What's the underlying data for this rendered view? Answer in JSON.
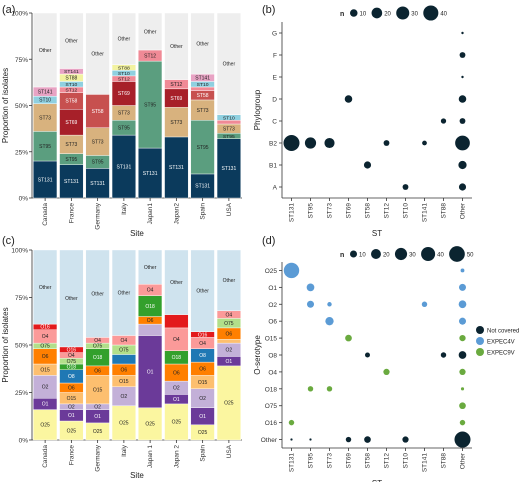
{
  "figure": {
    "panel_labels": [
      "(a)",
      "(b)",
      "(c)",
      "(d)"
    ]
  },
  "chart_data": [
    {
      "panel": "(a)",
      "type": "bar",
      "stacked": true,
      "xlabel": "Site",
      "ylabel": "Proportion of isolates",
      "ylim": [
        0,
        1
      ],
      "yticks": [
        "0%",
        "25%",
        "50%",
        "75%",
        "100%"
      ],
      "categories": [
        "Canada",
        "France",
        "Germany",
        "Italy",
        "Japan1",
        "Japan2",
        "Spain",
        "USA"
      ],
      "segment_labels_shown": [
        [
          "ST131",
          "ST95",
          "ST73",
          "ST10",
          "ST141",
          "Other"
        ],
        [
          "ST131",
          "ST95",
          "ST73",
          "ST69",
          "ST58",
          "ST12",
          "ST10",
          "ST88",
          "ST141",
          "Other"
        ],
        [
          "ST131",
          "ST95",
          "ST73",
          "ST58",
          "Other"
        ],
        [
          "ST131",
          "ST95",
          "ST73",
          "ST69",
          "ST12",
          "ST10",
          "ST88",
          "Other"
        ],
        [
          "ST131",
          "ST95",
          "ST12",
          "Other"
        ],
        [
          "ST131",
          "ST73",
          "ST69",
          "ST12",
          "Other"
        ],
        [
          "ST131",
          "ST95",
          "ST73",
          "ST58",
          "ST12",
          "ST10",
          "ST141",
          "Other"
        ],
        [
          "ST131",
          "ST95",
          "ST73",
          "ST12",
          "ST10",
          "Other"
        ]
      ],
      "series": [
        {
          "name": "ST131",
          "color": "#0b3a5c",
          "values": [
            0.2,
            0.18,
            0.16,
            0.34,
            0.27,
            0.33,
            0.13,
            0.32
          ]
        },
        {
          "name": "ST95",
          "color": "#5b9e7f",
          "values": [
            0.16,
            0.06,
            0.07,
            0.08,
            0.47,
            0.0,
            0.29,
            0.03
          ]
        },
        {
          "name": "ST73",
          "color": "#d8b27e",
          "values": [
            0.15,
            0.1,
            0.15,
            0.08,
            0.0,
            0.16,
            0.11,
            0.05
          ]
        },
        {
          "name": "ST69",
          "color": "#a72029",
          "values": [
            0.0,
            0.14,
            0.0,
            0.13,
            0.0,
            0.1,
            0.0,
            0.0
          ]
        },
        {
          "name": "ST58",
          "color": "#c7504f",
          "values": [
            0.0,
            0.09,
            0.18,
            0.0,
            0.0,
            0.0,
            0.05,
            0.0
          ]
        },
        {
          "name": "ST12",
          "color": "#f08a96",
          "values": [
            0.0,
            0.03,
            0.0,
            0.03,
            0.06,
            0.05,
            0.02,
            0.02
          ]
        },
        {
          "name": "ST10",
          "color": "#8fd0e0",
          "values": [
            0.04,
            0.03,
            0.0,
            0.03,
            0.0,
            0.0,
            0.03,
            0.03
          ]
        },
        {
          "name": "ST88",
          "color": "#f2f2a0",
          "values": [
            0.0,
            0.04,
            0.0,
            0.03,
            0.0,
            0.0,
            0.0,
            0.0
          ]
        },
        {
          "name": "ST141",
          "color": "#e8a3c4",
          "values": [
            0.05,
            0.03,
            0.0,
            0.0,
            0.0,
            0.0,
            0.04,
            0.0
          ]
        },
        {
          "name": "Other",
          "color": "#eeeeee",
          "values": [
            0.4,
            0.3,
            0.44,
            0.28,
            0.2,
            0.36,
            0.33,
            0.55
          ]
        }
      ]
    },
    {
      "panel": "(b)",
      "type": "scatter",
      "subtype": "bubble",
      "xlabel": "ST",
      "ylabel": "Phylogroup",
      "x_categories": [
        "ST131",
        "ST95",
        "ST73",
        "ST69",
        "ST58",
        "ST12",
        "ST10",
        "ST141",
        "ST88",
        "Other"
      ],
      "y_categories": [
        "G",
        "F",
        "E",
        "D",
        "C",
        "B2",
        "B1",
        "A"
      ],
      "size_legend": {
        "title": "n",
        "values": [
          10,
          20,
          30,
          40
        ]
      },
      "color": "#0b2430",
      "points": [
        {
          "x": "ST131",
          "y": "B2",
          "n": 45
        },
        {
          "x": "ST95",
          "y": "B2",
          "n": 22
        },
        {
          "x": "ST73",
          "y": "B2",
          "n": 18
        },
        {
          "x": "ST69",
          "y": "D",
          "n": 10
        },
        {
          "x": "ST58",
          "y": "B1",
          "n": 9
        },
        {
          "x": "ST12",
          "y": "B2",
          "n": 6
        },
        {
          "x": "ST10",
          "y": "A",
          "n": 6
        },
        {
          "x": "ST141",
          "y": "B2",
          "n": 4
        },
        {
          "x": "ST88",
          "y": "C",
          "n": 5
        },
        {
          "x": "Other",
          "y": "G",
          "n": 1
        },
        {
          "x": "Other",
          "y": "F",
          "n": 6
        },
        {
          "x": "Other",
          "y": "E",
          "n": 1
        },
        {
          "x": "Other",
          "y": "D",
          "n": 10
        },
        {
          "x": "Other",
          "y": "C",
          "n": 6
        },
        {
          "x": "Other",
          "y": "B2",
          "n": 38
        },
        {
          "x": "Other",
          "y": "B1",
          "n": 12
        },
        {
          "x": "Other",
          "y": "A",
          "n": 9
        }
      ]
    },
    {
      "panel": "(c)",
      "type": "bar",
      "stacked": true,
      "xlabel": "Site",
      "ylabel": "Proportion of isolates",
      "ylim": [
        0,
        1
      ],
      "yticks": [
        "0%",
        "25%",
        "50%",
        "75%",
        "100%"
      ],
      "categories": [
        "Canada",
        "France",
        "Germany",
        "Italy",
        "Japan 1",
        "Japan 2",
        "Spain",
        "USA"
      ],
      "segment_labels_shown": [
        [
          "O25",
          "O1",
          "O2",
          "O6",
          "O15",
          "O4",
          "O75",
          "O16",
          "Other"
        ],
        [
          "O25",
          "O1",
          "O2",
          "O6",
          "O8",
          "O15",
          "O4",
          "O75",
          "O16",
          "O18",
          "Other"
        ],
        [
          "O25",
          "O1",
          "O2",
          "O15",
          "O6",
          "O18",
          "O75",
          "O4",
          "Other"
        ],
        [
          "O25",
          "O1",
          "O2",
          "O6",
          "O15",
          "O4",
          "O75",
          "Other"
        ],
        [
          "O25",
          "O1",
          "O6",
          "O4",
          "O18",
          "Other"
        ],
        [
          "O25",
          "O1",
          "O2",
          "O6",
          "O4",
          "O18",
          "Other"
        ],
        [
          "O25",
          "O1",
          "O2",
          "O15",
          "O6",
          "O8",
          "O4",
          "O16",
          "Other"
        ],
        [
          "O25",
          "O1",
          "O2",
          "O6",
          "O15",
          "O75",
          "O4",
          "Other"
        ]
      ],
      "series": [
        {
          "name": "O25",
          "color": "#fbf6a0",
          "values": [
            0.16,
            0.1,
            0.09,
            0.18,
            0.17,
            0.19,
            0.08,
            0.39
          ]
        },
        {
          "name": "O1",
          "color": "#6b3a99",
          "values": [
            0.06,
            0.06,
            0.07,
            0.0,
            0.38,
            0.05,
            0.09,
            0.05
          ]
        },
        {
          "name": "O2",
          "color": "#c3b0d8",
          "values": [
            0.12,
            0.03,
            0.03,
            0.1,
            0.06,
            0.07,
            0.1,
            0.07
          ]
        },
        {
          "name": "O15",
          "color": "#fdbf6f",
          "values": [
            0.06,
            0.06,
            0.15,
            0.06,
            0.0,
            0.0,
            0.07,
            0.02
          ]
        },
        {
          "name": "O6",
          "color": "#ff7f00",
          "values": [
            0.08,
            0.05,
            0.05,
            0.06,
            0.04,
            0.09,
            0.07,
            0.06
          ]
        },
        {
          "name": "O8",
          "color": "#1f78b4",
          "values": [
            0.0,
            0.07,
            0.0,
            0.05,
            0.0,
            0.0,
            0.07,
            0.0
          ]
        },
        {
          "name": "O18",
          "color": "#33a02c",
          "values": [
            0.0,
            0.03,
            0.09,
            0.0,
            0.11,
            0.07,
            0.0,
            0.0
          ]
        },
        {
          "name": "O75",
          "color": "#b2df8a",
          "values": [
            0.03,
            0.03,
            0.03,
            0.05,
            0.0,
            0.0,
            0.0,
            0.05
          ]
        },
        {
          "name": "O4",
          "color": "#fb9a99",
          "values": [
            0.07,
            0.03,
            0.03,
            0.05,
            0.06,
            0.12,
            0.06,
            0.04
          ]
        },
        {
          "name": "O16",
          "color": "#e31a1c",
          "values": [
            0.03,
            0.03,
            0.0,
            0.0,
            0.0,
            0.07,
            0.03,
            0.0
          ]
        },
        {
          "name": "Other",
          "color": "#cfe3ee",
          "values": [
            0.39,
            0.51,
            0.46,
            0.45,
            0.18,
            0.34,
            0.43,
            0.32
          ]
        }
      ]
    },
    {
      "panel": "(d)",
      "type": "scatter",
      "subtype": "bubble",
      "xlabel": "ST",
      "ylabel": "O-serotype",
      "x_categories": [
        "ST131",
        "ST95",
        "ST73",
        "ST69",
        "ST58",
        "ST12",
        "ST10",
        "ST141",
        "ST88",
        "Other"
      ],
      "y_categories": [
        "O25",
        "O1",
        "O2",
        "O6",
        "O15",
        "O8",
        "O4",
        "O18",
        "O75",
        "O16",
        "Other"
      ],
      "size_legend": {
        "title": "n",
        "values": [
          10,
          20,
          30,
          40,
          50
        ]
      },
      "color_legend": [
        {
          "label": "Not covered",
          "color": "#0b2430"
        },
        {
          "label": "EXPEC4V",
          "color": "#5b9bd5"
        },
        {
          "label": "EXPEC9V",
          "color": "#6aaa3f"
        }
      ],
      "points": [
        {
          "x": "ST131",
          "y": "O25",
          "n": 48,
          "group": "EXPEC4V"
        },
        {
          "x": "ST131",
          "y": "O16",
          "n": 6,
          "group": "EXPEC9V"
        },
        {
          "x": "ST131",
          "y": "Other",
          "n": 1,
          "group": "Not covered"
        },
        {
          "x": "ST95",
          "y": "O1",
          "n": 12,
          "group": "EXPEC4V"
        },
        {
          "x": "ST95",
          "y": "O2",
          "n": 10,
          "group": "EXPEC4V"
        },
        {
          "x": "ST95",
          "y": "O18",
          "n": 6,
          "group": "EXPEC9V"
        },
        {
          "x": "ST95",
          "y": "Other",
          "n": 1,
          "group": "Not covered"
        },
        {
          "x": "ST73",
          "y": "O2",
          "n": 4,
          "group": "EXPEC4V"
        },
        {
          "x": "ST73",
          "y": "O6",
          "n": 14,
          "group": "EXPEC4V"
        },
        {
          "x": "ST73",
          "y": "O18",
          "n": 6,
          "group": "EXPEC9V"
        },
        {
          "x": "ST69",
          "y": "O15",
          "n": 9,
          "group": "EXPEC9V"
        },
        {
          "x": "ST69",
          "y": "Other",
          "n": 6,
          "group": "Not covered"
        },
        {
          "x": "ST58",
          "y": "O8",
          "n": 5,
          "group": "Not covered"
        },
        {
          "x": "ST58",
          "y": "Other",
          "n": 9,
          "group": "Not covered"
        },
        {
          "x": "ST12",
          "y": "O4",
          "n": 8,
          "group": "EXPEC9V"
        },
        {
          "x": "ST10",
          "y": "Other",
          "n": 8,
          "group": "Not covered"
        },
        {
          "x": "ST141",
          "y": "O2",
          "n": 6,
          "group": "EXPEC4V"
        },
        {
          "x": "ST88",
          "y": "O8",
          "n": 6,
          "group": "Not covered"
        },
        {
          "x": "Other",
          "y": "O25",
          "n": 3,
          "group": "EXPEC4V"
        },
        {
          "x": "Other",
          "y": "O1",
          "n": 10,
          "group": "EXPEC4V"
        },
        {
          "x": "Other",
          "y": "O2",
          "n": 12,
          "group": "EXPEC4V"
        },
        {
          "x": "Other",
          "y": "O6",
          "n": 10,
          "group": "EXPEC4V"
        },
        {
          "x": "Other",
          "y": "O15",
          "n": 8,
          "group": "EXPEC9V"
        },
        {
          "x": "Other",
          "y": "O8",
          "n": 12,
          "group": "Not covered"
        },
        {
          "x": "Other",
          "y": "O4",
          "n": 8,
          "group": "EXPEC9V"
        },
        {
          "x": "Other",
          "y": "O18",
          "n": 2,
          "group": "EXPEC9V"
        },
        {
          "x": "Other",
          "y": "O75",
          "n": 9,
          "group": "EXPEC9V"
        },
        {
          "x": "Other",
          "y": "O16",
          "n": 6,
          "group": "EXPEC9V"
        },
        {
          "x": "Other",
          "y": "Other",
          "n": 52,
          "group": "Not covered"
        }
      ]
    }
  ]
}
